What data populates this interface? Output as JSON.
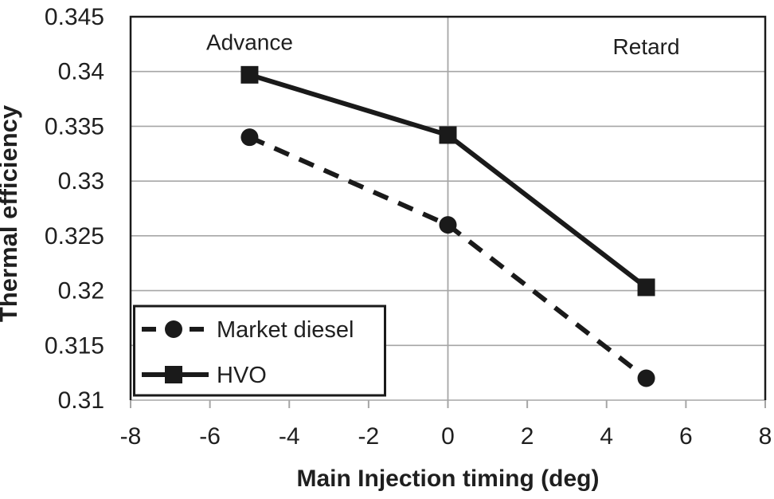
{
  "chart_data": {
    "type": "line",
    "title": "",
    "xlabel": "Main Injection timing (deg)",
    "ylabel": "Thermal efficiency",
    "xlim": [
      -8,
      8
    ],
    "ylim": [
      0.31,
      0.345
    ],
    "xticks": [
      -8,
      -6,
      -4,
      -2,
      0,
      2,
      4,
      6,
      8
    ],
    "xtick_labels": [
      "-8",
      "-6",
      "-4",
      "-2",
      "0",
      "2",
      "4",
      "6",
      "8"
    ],
    "yticks": [
      0.31,
      0.315,
      0.32,
      0.325,
      0.33,
      0.335,
      0.34,
      0.345
    ],
    "ytick_labels": [
      "0.31",
      "0.315",
      "0.32",
      "0.325",
      "0.33",
      "0.335",
      "0.34",
      "0.345"
    ],
    "grid": "horizontal gridlines at every y tick; vertical gridline at x=0 only",
    "legend_position": "inside bottom-left",
    "x": [
      -5,
      0,
      5
    ],
    "series": [
      {
        "name": "Market diesel",
        "values": [
          0.334,
          0.326,
          0.312
        ],
        "line": "dashed",
        "marker": "circle"
      },
      {
        "name": "HVO",
        "values": [
          0.3397,
          0.3342,
          0.3203
        ],
        "line": "solid",
        "marker": "square"
      }
    ],
    "annotations": [
      {
        "text": "Advance",
        "x": -5,
        "y": 0.3427
      },
      {
        "text": "Retard",
        "x": 5,
        "y": 0.3423
      }
    ],
    "colors": {
      "line": "#1a1a1a",
      "grid": "#a6a6a6",
      "text": "#1f1f1f",
      "background": "#ffffff"
    }
  }
}
